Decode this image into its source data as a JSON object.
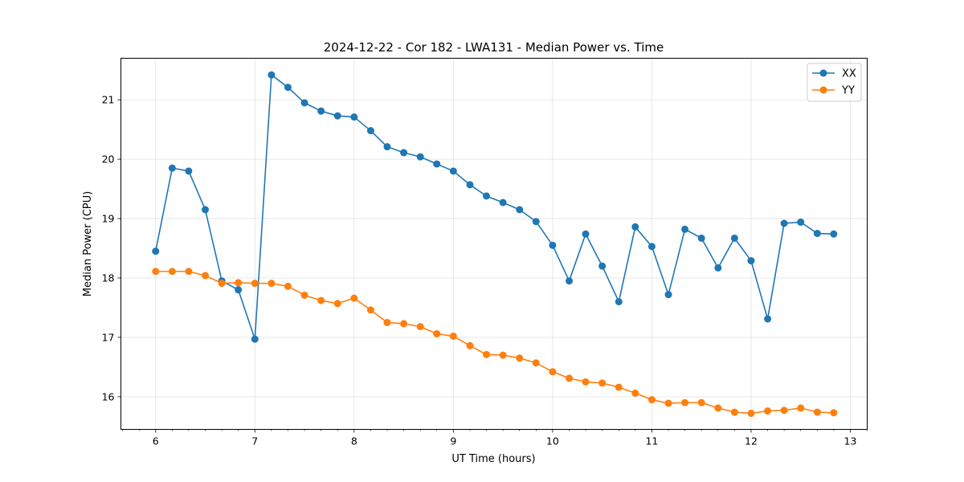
{
  "chart_data": {
    "type": "line",
    "title": "2024-12-22 - Cor 182 - LWA131 - Median Power vs. Time",
    "xlabel": "UT Time (hours)",
    "ylabel": "Median Power (CPU)",
    "xlim": [
      5.65,
      13.17
    ],
    "ylim": [
      15.45,
      21.7
    ],
    "xticks": [
      6,
      7,
      8,
      9,
      10,
      11,
      12,
      13
    ],
    "xtick_labels": [
      "6",
      "7",
      "8",
      "9",
      "10",
      "11",
      "12",
      "13"
    ],
    "yticks": [
      16,
      17,
      18,
      19,
      20,
      21
    ],
    "ytick_labels": [
      "16",
      "17",
      "18",
      "19",
      "20",
      "21"
    ],
    "grid": true,
    "legend_position": "top-right",
    "x": [
      6.0,
      6.167,
      6.333,
      6.5,
      6.667,
      6.833,
      7.0,
      7.167,
      7.333,
      7.5,
      7.667,
      7.833,
      8.0,
      8.167,
      8.333,
      8.5,
      8.667,
      8.833,
      9.0,
      9.167,
      9.333,
      9.5,
      9.667,
      9.833,
      10.0,
      10.167,
      10.333,
      10.5,
      10.667,
      10.833,
      11.0,
      11.167,
      11.333,
      11.5,
      11.667,
      11.833,
      12.0,
      12.167,
      12.333,
      12.5,
      12.667,
      12.833
    ],
    "series": [
      {
        "name": "XX",
        "color": "#1f77b4",
        "values": [
          18.45,
          19.85,
          19.8,
          19.15,
          17.95,
          17.8,
          16.97,
          21.42,
          21.21,
          20.95,
          20.81,
          20.73,
          20.71,
          20.48,
          20.21,
          20.11,
          20.04,
          19.92,
          19.8,
          19.57,
          19.38,
          19.27,
          19.15,
          18.95,
          18.55,
          17.95,
          18.74,
          18.2,
          17.6,
          18.86,
          18.53,
          17.72,
          18.82,
          18.67,
          18.17,
          18.67,
          18.29,
          17.31,
          18.92,
          18.94,
          18.75,
          18.74
        ]
      },
      {
        "name": "YY",
        "color": "#ff7f0e",
        "values": [
          18.11,
          18.11,
          18.11,
          18.04,
          17.91,
          17.92,
          17.91,
          17.91,
          17.86,
          17.71,
          17.62,
          17.57,
          17.66,
          17.46,
          17.25,
          17.23,
          17.18,
          17.06,
          17.02,
          16.86,
          16.71,
          16.7,
          16.65,
          16.57,
          16.42,
          16.31,
          16.25,
          16.23,
          16.16,
          16.06,
          15.95,
          15.89,
          15.9,
          15.9,
          15.81,
          15.74,
          15.72,
          15.76,
          15.77,
          15.81,
          15.74,
          15.73
        ]
      }
    ]
  }
}
